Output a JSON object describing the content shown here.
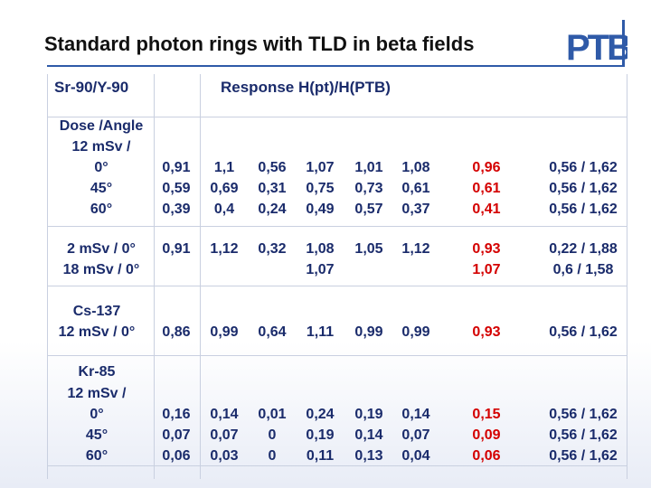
{
  "slide": {
    "title": "Standard photon rings with TLD in beta fields",
    "logo_text": "PTB"
  },
  "table": {
    "source_header": "Sr-90/Y-90",
    "response_header": "Response H(pt)/H(PTB)",
    "sections": {
      "sr": {
        "label_lines": [
          "Dose /Angle",
          "12 mSv /",
          "0°",
          "45°",
          "60°"
        ],
        "rows": [
          [
            "0,91",
            "1,1",
            "0,56",
            "1,07",
            "1,01",
            "1,08",
            "0,96",
            "0,56 / 1,62"
          ],
          [
            "0,59",
            "0,69",
            "0,31",
            "0,75",
            "0,73",
            "0,61",
            "0,61",
            "0,56 / 1,62"
          ],
          [
            "0,39",
            "0,4",
            "0,24",
            "0,49",
            "0,57",
            "0,37",
            "0,41",
            "0,56 / 1,62"
          ]
        ]
      },
      "sr2": {
        "label_lines": [
          "2 mSv / 0°",
          "18 mSv / 0°"
        ],
        "rows": [
          [
            "0,91",
            "1,12",
            "0,32",
            "1,08",
            "1,05",
            "1,12",
            "0,93",
            "0,22 / 1,88"
          ],
          [
            "",
            "",
            "",
            "1,07",
            "",
            "",
            "1,07",
            "0,6 / 1,58"
          ]
        ]
      },
      "cs": {
        "name": "Cs-137",
        "label_lines": [
          "12 mSv / 0°"
        ],
        "rows": [
          [
            "0,86",
            "0,99",
            "0,64",
            "1,11",
            "0,99",
            "0,99",
            "0,93",
            "0,56 / 1,62"
          ]
        ]
      },
      "kr": {
        "name": "Kr-85",
        "label_lines": [
          "12 mSv /",
          "0°",
          "45°",
          "60°"
        ],
        "rows": [
          [
            "0,16",
            "0,14",
            "0,01",
            "0,24",
            "0,19",
            "0,14",
            "0,15",
            "0,56 / 1,62"
          ],
          [
            "0,07",
            "0,07",
            "0",
            "0,19",
            "0,14",
            "0,07",
            "0,09",
            "0,56 / 1,62"
          ],
          [
            "0,06",
            "0,03",
            "0",
            "0,11",
            "0,13",
            "0,04",
            "0,06",
            "0,56 / 1,62"
          ]
        ]
      }
    },
    "colors": {
      "text": "#1a2b6b",
      "highlight": "#d40000",
      "grid": "#c9d0e0",
      "brand": "#2f5aa8"
    }
  }
}
